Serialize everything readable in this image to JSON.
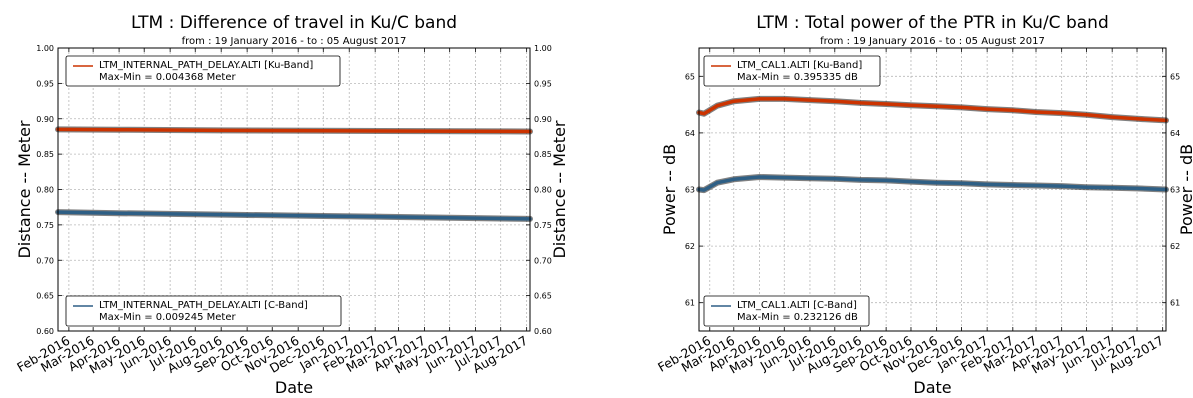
{
  "chart_data": [
    {
      "type": "line",
      "title": "LTM : Difference of travel in Ku/C band",
      "subtitle": "from : 19 January 2016  -  to : 05 August 2017",
      "xlabel": "Date",
      "ylabel": "Distance -- Meter",
      "ylabel_right": "Distance -- Meter",
      "ylim": [
        0.6,
        1.0
      ],
      "yticks": [
        "0.60",
        "0.65",
        "0.70",
        "0.75",
        "0.80",
        "0.85",
        "0.90",
        "0.95",
        "1.00"
      ],
      "xlim": [
        "2016-01-19",
        "2017-08-05"
      ],
      "xticks": [
        "Feb-2016",
        "Mar-2016",
        "Apr-2016",
        "May-2016",
        "Jun-2016",
        "Jul-2016",
        "Aug-2016",
        "Sep-2016",
        "Oct-2016",
        "Nov-2016",
        "Dec-2016",
        "Jan-2017",
        "Feb-2017",
        "Mar-2017",
        "Apr-2017",
        "May-2017",
        "Jun-2017",
        "Jul-2017",
        "Aug-2017"
      ],
      "grid": true,
      "series": [
        {
          "name": "LTM_INTERNAL_PATH_DELAY.ALTI [Ku-Band]",
          "stat": "Max-Min = 0.004368 Meter",
          "color": "#cc3300",
          "legend": "top-left",
          "x": [
            "2016-01-19",
            "2016-04-01",
            "2016-08-01",
            "2016-12-01",
            "2017-04-01",
            "2017-08-05"
          ],
          "values": [
            0.885,
            0.8845,
            0.8835,
            0.883,
            0.8825,
            0.882
          ]
        },
        {
          "name": "LTM_INTERNAL_PATH_DELAY.ALTI [C-Band]",
          "stat": "Max-Min = 0.009245 Meter",
          "color": "#2e5f85",
          "legend": "bottom-left",
          "x": [
            "2016-01-19",
            "2016-04-01",
            "2016-08-01",
            "2016-12-01",
            "2017-04-01",
            "2017-08-05"
          ],
          "values": [
            0.768,
            0.7665,
            0.7645,
            0.7625,
            0.7605,
            0.7585
          ]
        }
      ]
    },
    {
      "type": "line",
      "title": "LTM : Total power of the PTR in Ku/C band",
      "subtitle": "from : 19 January 2016  -  to : 05 August 2017",
      "xlabel": "Date",
      "ylabel": "Power -- dB",
      "ylabel_right": "Power -- dB",
      "ylim": [
        60.5,
        65.5
      ],
      "yticks": [
        "61",
        "62",
        "63",
        "64",
        "65"
      ],
      "xlim": [
        "2016-01-19",
        "2017-08-05"
      ],
      "xticks": [
        "Feb-2016",
        "Mar-2016",
        "Apr-2016",
        "May-2016",
        "Jun-2016",
        "Jul-2016",
        "Aug-2016",
        "Sep-2016",
        "Oct-2016",
        "Nov-2016",
        "Dec-2016",
        "Jan-2017",
        "Feb-2017",
        "Mar-2017",
        "Apr-2017",
        "May-2017",
        "Jun-2017",
        "Jul-2017",
        "Aug-2017"
      ],
      "grid": true,
      "series": [
        {
          "name": "LTM_CAL1.ALTI [Ku-Band]",
          "stat": "Max-Min = 0.395335 dB",
          "color": "#cc3300",
          "legend": "top-left",
          "x": [
            "2016-01-19",
            "2016-01-25",
            "2016-02-10",
            "2016-03-01",
            "2016-04-01",
            "2016-05-01",
            "2016-06-01",
            "2016-07-01",
            "2016-08-01",
            "2016-09-01",
            "2016-10-01",
            "2016-11-01",
            "2016-12-01",
            "2017-01-01",
            "2017-02-01",
            "2017-03-01",
            "2017-04-01",
            "2017-05-01",
            "2017-06-01",
            "2017-07-01",
            "2017-08-05"
          ],
          "values": [
            64.36,
            64.34,
            64.48,
            64.56,
            64.6,
            64.6,
            64.58,
            64.56,
            64.53,
            64.51,
            64.49,
            64.47,
            64.45,
            64.42,
            64.4,
            64.37,
            64.35,
            64.32,
            64.28,
            64.25,
            64.22
          ]
        },
        {
          "name": "LTM_CAL1.ALTI [C-Band]",
          "stat": "Max-Min = 0.232126 dB",
          "color": "#2e5f85",
          "legend": "bottom-left",
          "x": [
            "2016-01-19",
            "2016-01-25",
            "2016-02-10",
            "2016-03-01",
            "2016-04-01",
            "2016-05-01",
            "2016-06-01",
            "2016-07-01",
            "2016-08-01",
            "2016-09-01",
            "2016-10-01",
            "2016-11-01",
            "2016-12-01",
            "2017-01-01",
            "2017-02-01",
            "2017-03-01",
            "2017-04-01",
            "2017-05-01",
            "2017-06-01",
            "2017-07-01",
            "2017-08-05"
          ],
          "values": [
            63.0,
            62.99,
            63.12,
            63.18,
            63.22,
            63.21,
            63.2,
            63.19,
            63.17,
            63.16,
            63.14,
            63.12,
            63.11,
            63.09,
            63.08,
            63.07,
            63.06,
            63.04,
            63.03,
            63.02,
            63.0
          ]
        }
      ]
    }
  ]
}
